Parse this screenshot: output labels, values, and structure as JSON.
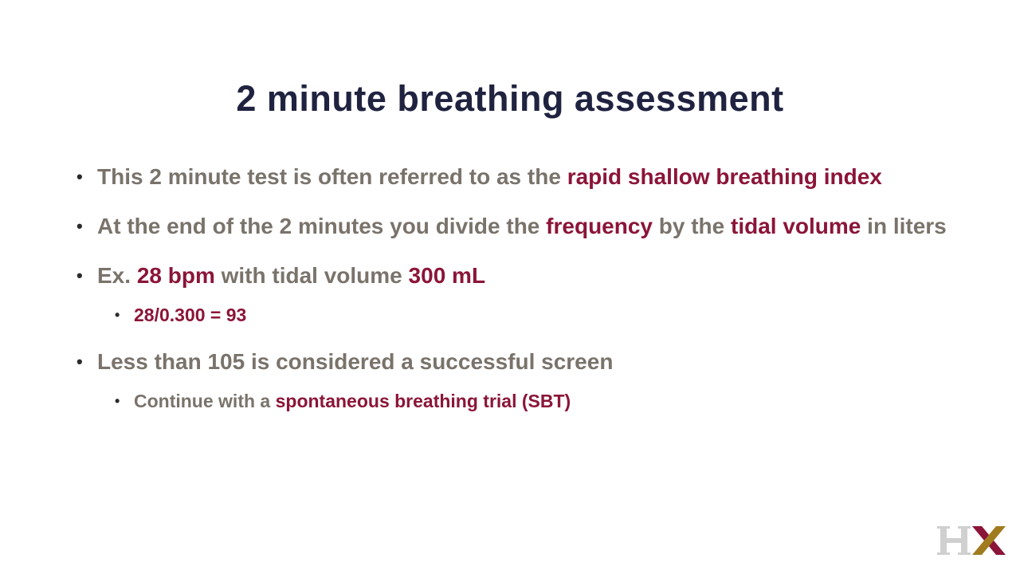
{
  "slide": {
    "title": "2 minute breathing assessment",
    "bullets": [
      {
        "text_1": "This 2 minute test is often referred to as the ",
        "hl_1": "rapid shallow breathing index"
      },
      {
        "text_1": "At the end of the 2 minutes you divide the ",
        "hl_1": "frequency",
        "text_2": " by the ",
        "hl_2": "tidal volume",
        "text_3": " in liters"
      },
      {
        "text_1": "Ex. ",
        "hl_1": "28 bpm",
        "text_2": " with tidal volume ",
        "hl_2": "300 mL",
        "sub": {
          "hl_1": "28/0.300 = 93"
        }
      },
      {
        "text_1": "Less than 105 is considered a successful screen",
        "sub": {
          "text_1": "Continue with a ",
          "hl_1": "spontaneous breathing trial (SBT)"
        }
      }
    ]
  },
  "logo": {
    "text": "HX",
    "colors": {
      "h": "#d0d0d0",
      "x_gold": "#a07c1e",
      "x_red": "#8b1538"
    }
  },
  "colors": {
    "title": "#1f2340",
    "body": "#7a736b",
    "highlight": "#8b1538"
  }
}
